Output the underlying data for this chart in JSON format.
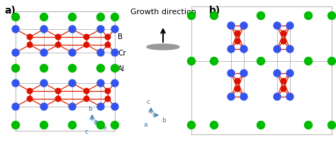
{
  "fig_width": 4.74,
  "fig_height": 2.05,
  "dpi": 100,
  "bg_color": "#ffffff",
  "title_a": "a)",
  "title_b": "b)",
  "label_B": "B",
  "label_Cr": "Cr",
  "label_Al": "Al",
  "growth_direction_text": "Growth direction",
  "color_Al": "#00bb00",
  "color_Cr": "#3355ee",
  "color_B": "#dd1100",
  "color_bond": "#dd2200",
  "color_frame": "#bbbbbb",
  "color_axes": "#3377aa"
}
